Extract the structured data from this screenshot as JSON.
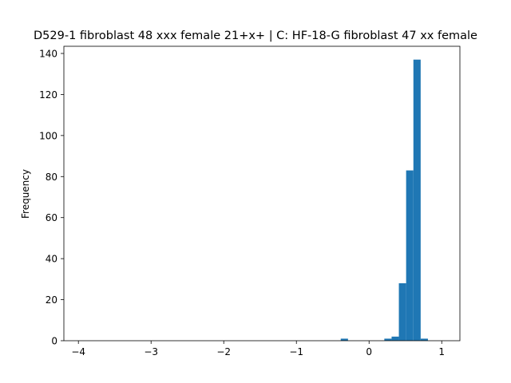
{
  "chart_data": {
    "type": "bar",
    "title": "D529-1 fibroblast 48 xxx female 21+x+ | C: HF-18-G fibroblast 47 xx female",
    "xlabel": "",
    "ylabel": "Frequency",
    "xlim": [
      -4.2,
      1.25
    ],
    "ylim": [
      0,
      143.5
    ],
    "xticks": [
      {
        "value": -4,
        "label": "−4"
      },
      {
        "value": -3,
        "label": "−3"
      },
      {
        "value": -2,
        "label": "−2"
      },
      {
        "value": -1,
        "label": "−1"
      },
      {
        "value": 0,
        "label": "0"
      },
      {
        "value": 1,
        "label": "1"
      }
    ],
    "yticks": [
      {
        "value": 0,
        "label": "0"
      },
      {
        "value": 20,
        "label": "20"
      },
      {
        "value": 40,
        "label": "40"
      },
      {
        "value": 60,
        "label": "60"
      },
      {
        "value": 80,
        "label": "80"
      },
      {
        "value": 100,
        "label": "100"
      },
      {
        "value": 120,
        "label": "120"
      },
      {
        "value": 140,
        "label": "140"
      }
    ],
    "bins": [
      {
        "x0": -0.39,
        "x1": -0.29,
        "count": 1
      },
      {
        "x0": 0.21,
        "x1": 0.31,
        "count": 1
      },
      {
        "x0": 0.31,
        "x1": 0.41,
        "count": 2
      },
      {
        "x0": 0.41,
        "x1": 0.51,
        "count": 28
      },
      {
        "x0": 0.51,
        "x1": 0.61,
        "count": 83
      },
      {
        "x0": 0.61,
        "x1": 0.71,
        "count": 137
      },
      {
        "x0": 0.71,
        "x1": 0.81,
        "count": 1
      }
    ],
    "bar_color": "#1f77b4",
    "grid": false,
    "legend": "none"
  }
}
